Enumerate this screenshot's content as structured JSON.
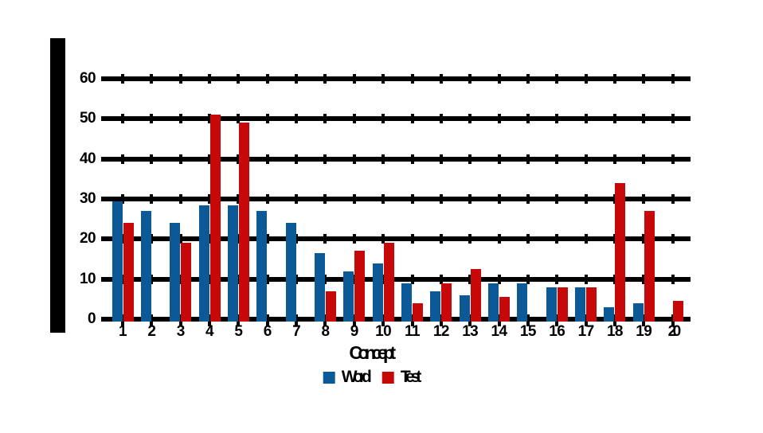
{
  "chart_data": {
    "type": "bar",
    "title": "",
    "x_axis_title": "Concept",
    "y_axis_title_illegible": true,
    "categories": [
      "1",
      "2",
      "3",
      "4",
      "5",
      "6",
      "7",
      "8",
      "9",
      "10",
      "11",
      "12",
      "13",
      "14",
      "15",
      "16",
      "17",
      "18",
      "19",
      "20"
    ],
    "series": [
      {
        "name": "Word",
        "color": "#0B5A97",
        "values": [
          29.5,
          27,
          24,
          28.5,
          28.5,
          27,
          24,
          16.5,
          12,
          14,
          9,
          7,
          6,
          9,
          9,
          8,
          8,
          3,
          4,
          0
        ]
      },
      {
        "name": "Test",
        "color": "#C60808",
        "values": [
          24,
          0,
          19,
          51,
          49,
          0,
          0,
          7,
          17,
          19,
          4,
          9,
          12.5,
          5.5,
          0,
          8,
          8,
          34,
          27,
          4.5
        ]
      }
    ],
    "y_ticks": [
      0,
      10,
      20,
      30,
      40,
      50,
      60
    ],
    "ylim": [
      0,
      65
    ],
    "grid": "horizontal-thick-black",
    "legend_position": "bottom-center",
    "axis_color": "#000000",
    "background": "#ffffff",
    "smashed_tick_labels": [
      "20"
    ]
  }
}
